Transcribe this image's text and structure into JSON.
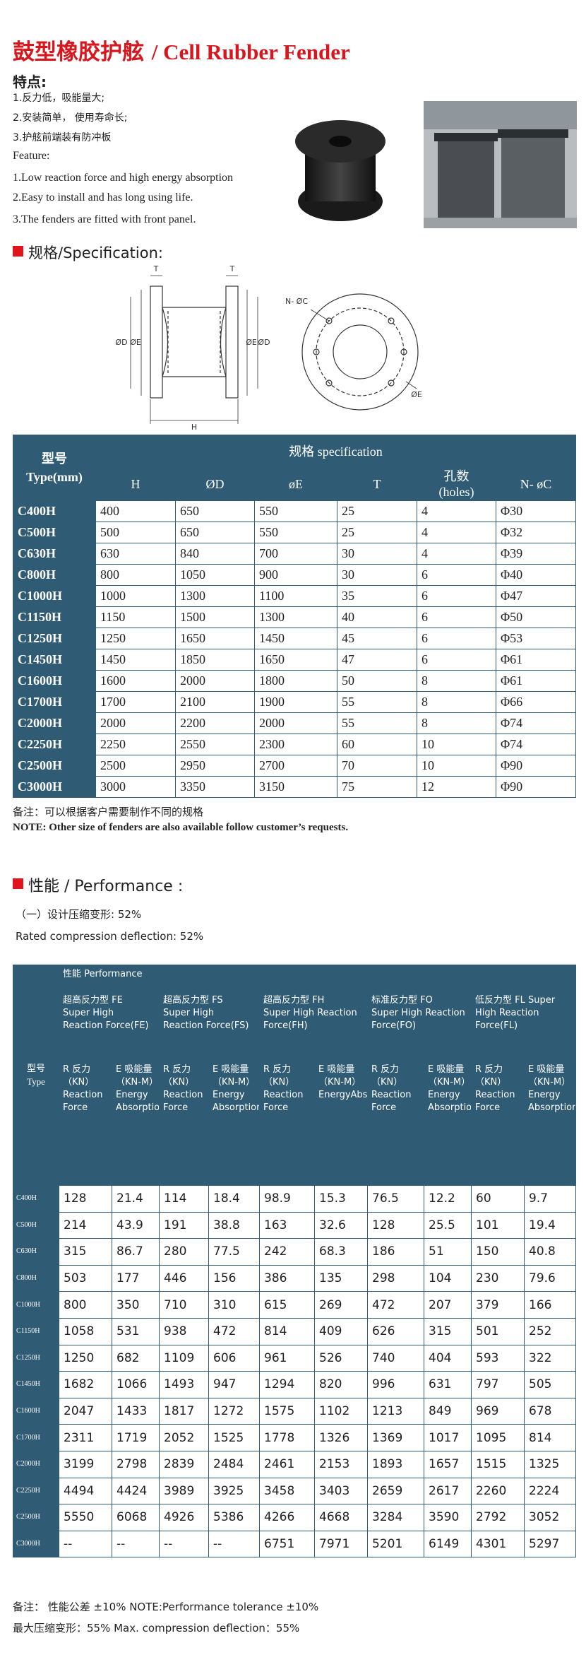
{
  "header": {
    "title_cn": "鼓型橡胶护舷",
    "title_en": "/ Cell Rubber Fender"
  },
  "features": {
    "heading": "特点:",
    "cn": [
      "1.反力低，吸能量大;",
      "2.安装简单，  使用寿命长;",
      "3.护舷前端装有防冲板"
    ],
    "en_heading": "Feature:",
    "en": [
      "1.Low reaction force and high energy absorption",
      "2.Easy to install and has long using life.",
      "3.The fenders are fitted with front panel."
    ]
  },
  "spec": {
    "heading": "规格/Specification:"
  },
  "diagram": {
    "labels": [
      "T",
      "T",
      "ØD",
      "ØE",
      "ØE",
      "ØD",
      "H",
      "N- ØC",
      "ØE"
    ]
  },
  "spec_table": {
    "type_header": [
      "型号",
      "Type(mm)"
    ],
    "group": "规格  specification",
    "columns": [
      "H",
      "ØD",
      "øE",
      "T",
      "孔数",
      "(holes)",
      "N- øC"
    ],
    "rows": [
      [
        "C400H",
        400,
        650,
        550,
        25,
        4,
        "Φ30"
      ],
      [
        "C500H",
        500,
        650,
        550,
        25,
        4,
        "Φ32"
      ],
      [
        "C630H",
        630,
        840,
        700,
        30,
        4,
        "Φ39"
      ],
      [
        "C800H",
        800,
        1050,
        900,
        30,
        6,
        "Φ40"
      ],
      [
        "C1000H",
        1000,
        1300,
        1100,
        35,
        6,
        "Φ47"
      ],
      [
        "C1150H",
        1150,
        1500,
        1300,
        40,
        6,
        "Φ50"
      ],
      [
        "C1250H",
        1250,
        1650,
        1450,
        45,
        6,
        "Φ53"
      ],
      [
        "C1450H",
        1450,
        1850,
        1650,
        47,
        6,
        "Φ61"
      ],
      [
        "C1600H",
        1600,
        2000,
        1800,
        50,
        8,
        "Φ61"
      ],
      [
        "C1700H",
        1700,
        2100,
        1900,
        55,
        8,
        "Φ66"
      ],
      [
        "C2000H",
        2000,
        2200,
        2000,
        55,
        8,
        "Φ74"
      ],
      [
        "C2250H",
        2250,
        2550,
        2300,
        60,
        10,
        "Φ74"
      ],
      [
        "C2500H",
        2500,
        2950,
        2700,
        70,
        10,
        "Φ90"
      ],
      [
        "C3000H",
        3000,
        3350,
        3150,
        75,
        12,
        "Φ90"
      ]
    ]
  },
  "notes": [
    "备注：可以根据客户需要制作不同的规格",
    "NOTE: Other size of fenders are also available follow customer’s requests."
  ],
  "performance": {
    "heading": "性能",
    "heading_en": "/ Performance :",
    "compression_cn": "（一）设计压缩变形:  52%",
    "compression_en": "Rated compression deflection:  52%"
  },
  "perf_table": {
    "title": "性能  Performance",
    "type_header": [
      "型号",
      "Type"
    ],
    "groups": [
      {
        "name": "超高反力型 FE",
        "subtitle": "Super High Reaction Force(FE)",
        "r_header": "R 反力（KN）Reaction Force",
        "e_header": "E 吸能量（KN-M）Energy Absorption"
      },
      {
        "name": "超高反力型 FS",
        "subtitle": "Super High Reaction Force(FS)",
        "r_header": "R 反力（KN）Reaction Force",
        "e_header": "E 吸能量（KN-M）Energy Absorption"
      },
      {
        "name": "超高反力型 FH",
        "subtitle": "Super High Reaction Force(FH)",
        "r_header": "R 反力（KN）Reaction Force",
        "e_header": "E 吸能量（KN-M）EnergyAbsorption"
      },
      {
        "name": "标准反力型 FO",
        "subtitle": "Super High Reaction Force(FO)",
        "r_header": "R 反力（KN）Reaction Force",
        "e_header": "E 吸能量（KN-M）Energy Absorption"
      },
      {
        "name": "低反力型 FL Super",
        "subtitle": "High Reaction Force(FL)",
        "r_header": "R 反力（KN）Reaction Force",
        "e_header": "E 吸能量（KN-M）Energy Absorption"
      }
    ],
    "rows": [
      [
        "C400H",
        128,
        21.4,
        114,
        18.4,
        98.9,
        15.3,
        76.5,
        12.2,
        60,
        9.7
      ],
      [
        "C500H",
        214,
        43.9,
        191,
        38.8,
        163,
        32.6,
        128,
        25.5,
        101,
        19.4
      ],
      [
        "C630H",
        315,
        86.7,
        280,
        77.5,
        242,
        68.3,
        186,
        51,
        150,
        40.8
      ],
      [
        "C800H",
        503,
        177,
        446,
        156,
        386,
        135,
        298,
        104,
        230,
        79.6
      ],
      [
        "C1000H",
        800,
        350,
        710,
        310,
        615,
        269,
        472,
        207,
        379,
        166
      ],
      [
        "C1150H",
        1058,
        531,
        938,
        472,
        814,
        409,
        626,
        315,
        501,
        252
      ],
      [
        "C1250H",
        1250,
        682,
        1109,
        606,
        961,
        526,
        740,
        404,
        593,
        322
      ],
      [
        "C1450H",
        1682,
        1066,
        1493,
        947,
        1294,
        820,
        996,
        631,
        797,
        505
      ],
      [
        "C1600H",
        2047,
        1433,
        1817,
        1272,
        1575,
        1102,
        1213,
        849,
        969,
        678
      ],
      [
        "C1700H",
        2311,
        1719,
        2052,
        1525,
        1778,
        1326,
        1369,
        1017,
        1095,
        814
      ],
      [
        "C2000H",
        3199,
        2798,
        2839,
        2484,
        2461,
        2153,
        1893,
        1657,
        1515,
        1325
      ],
      [
        "C2250H",
        4494,
        4424,
        3989,
        3925,
        3458,
        3403,
        2659,
        2617,
        2260,
        2224
      ],
      [
        "C2500H",
        5550,
        6068,
        4926,
        5386,
        4266,
        4668,
        3284,
        3590,
        2792,
        3052
      ],
      [
        "C3000H",
        "--",
        "--",
        "--",
        "--",
        6751,
        7971,
        5201,
        6149,
        4301,
        5297
      ]
    ]
  },
  "footer": [
    "备注：  性能公差 ±10%   NOTE:Performance tolerance ±10%",
    "最大压缩变形：55%    Max. compression deflection：55%"
  ]
}
